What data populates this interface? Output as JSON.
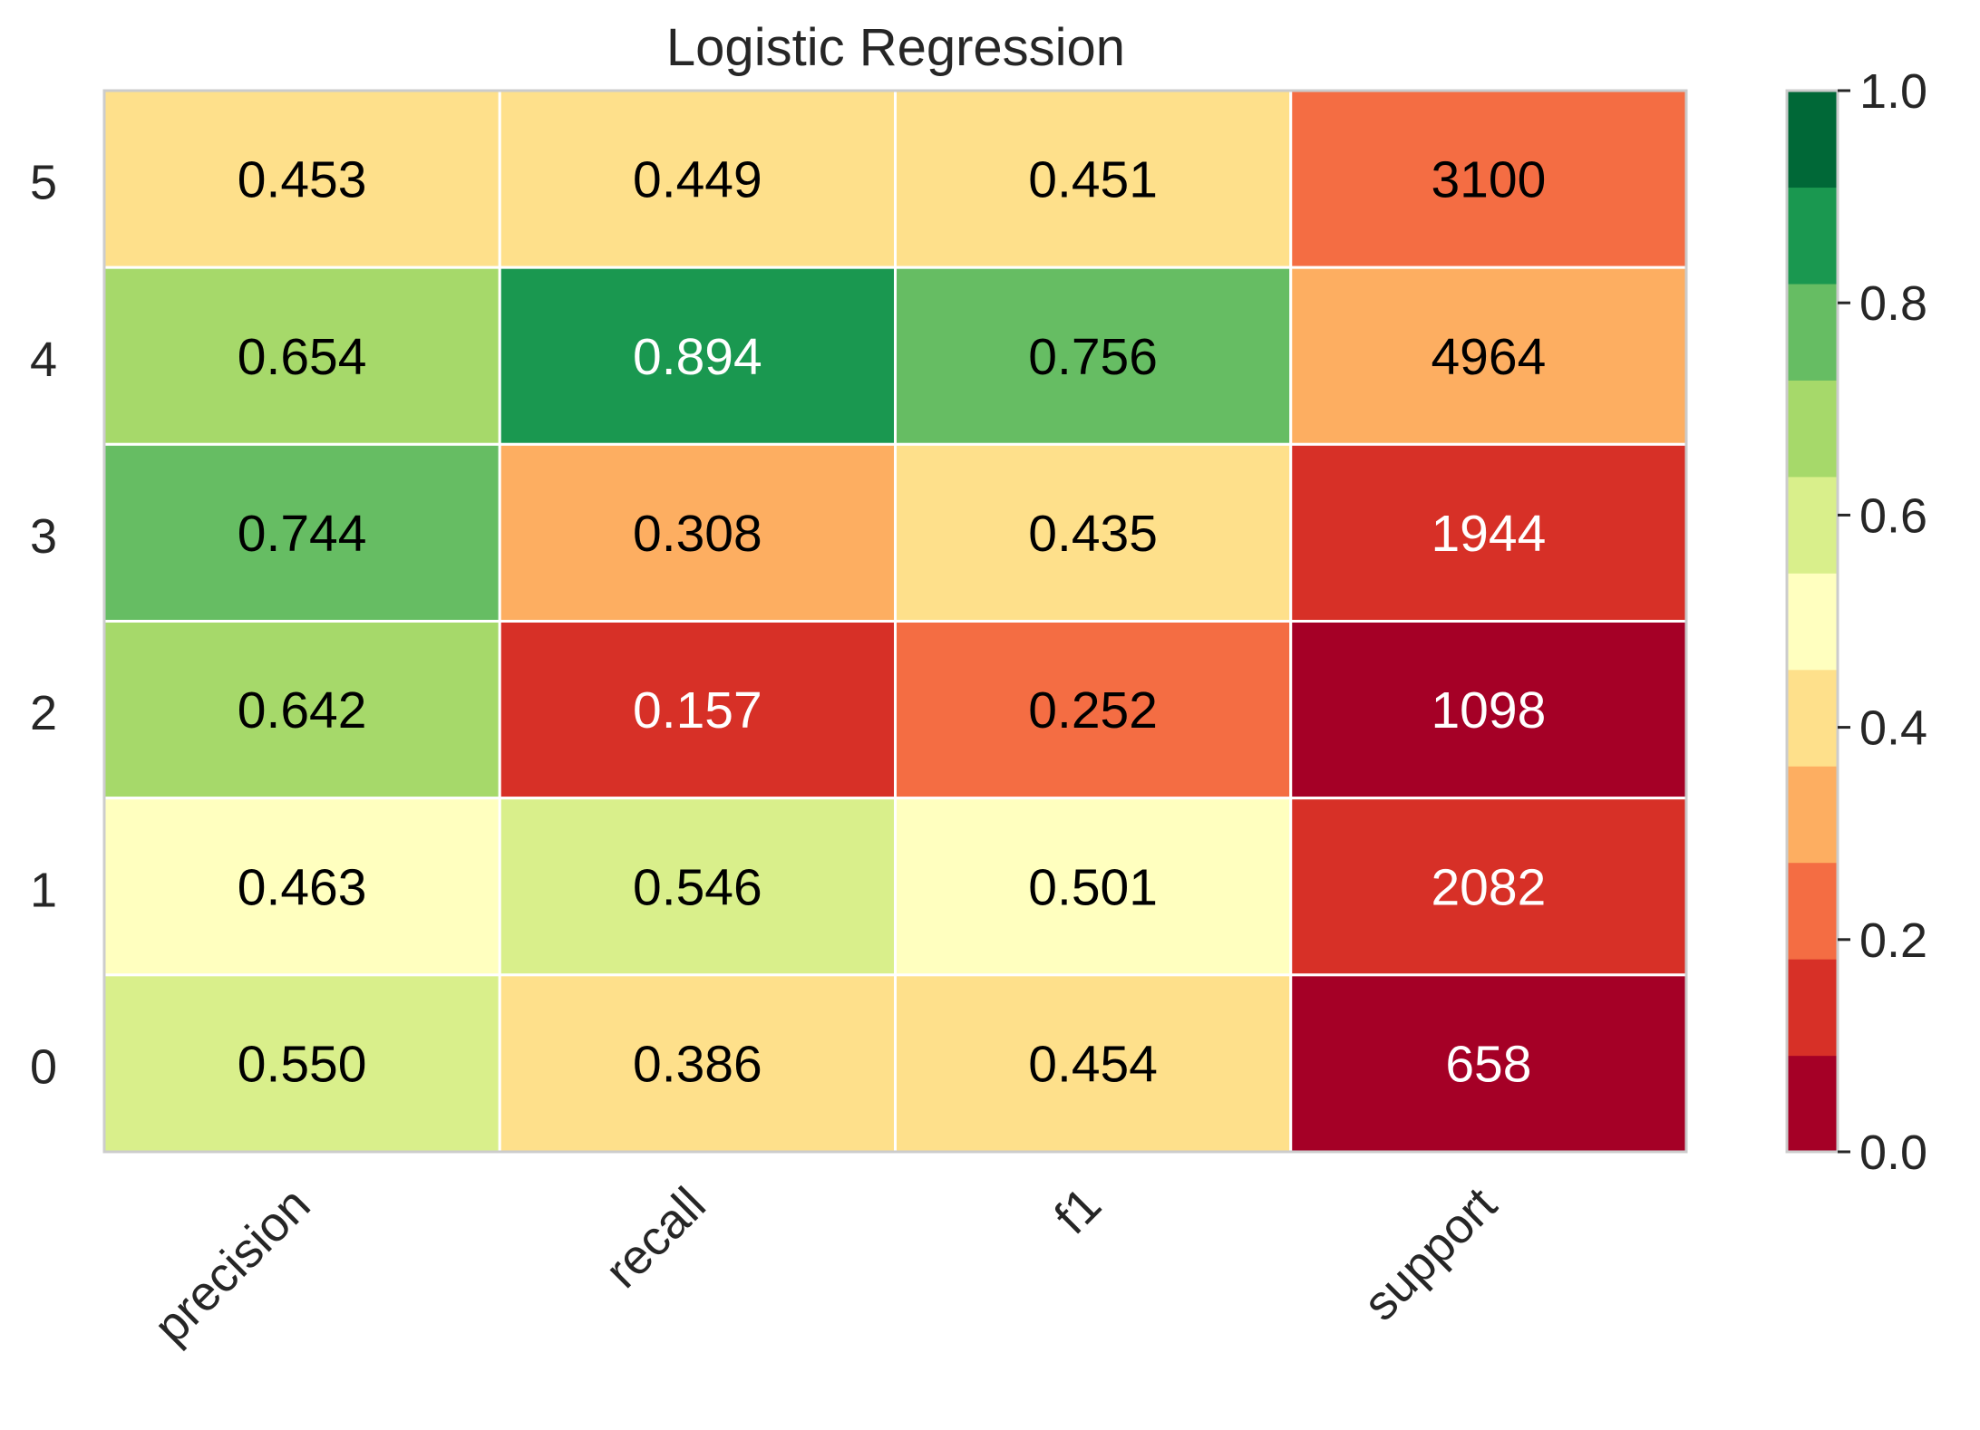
{
  "chart_data": {
    "type": "heatmap",
    "title": "Logistic Regression",
    "columns": [
      "precision",
      "recall",
      "f1",
      "support"
    ],
    "rows": [
      "5",
      "4",
      "3",
      "2",
      "1",
      "0"
    ],
    "values": [
      [
        0.453,
        0.449,
        0.451,
        3100
      ],
      [
        0.654,
        0.894,
        0.756,
        4964
      ],
      [
        0.744,
        0.308,
        0.435,
        1944
      ],
      [
        0.642,
        0.157,
        0.252,
        1098
      ],
      [
        0.463,
        0.546,
        0.501,
        2082
      ],
      [
        0.55,
        0.386,
        0.454,
        658
      ]
    ],
    "labels": [
      [
        "0.453",
        "0.449",
        "0.451",
        "3100"
      ],
      [
        "0.654",
        "0.894",
        "0.756",
        "4964"
      ],
      [
        "0.744",
        "0.308",
        "0.435",
        "1944"
      ],
      [
        "0.642",
        "0.157",
        "0.252",
        "1098"
      ],
      [
        "0.463",
        "0.546",
        "0.501",
        "2082"
      ],
      [
        "0.550",
        "0.386",
        "0.454",
        "658"
      ]
    ],
    "cell_colors": [
      [
        "#fee08b",
        "#fee08b",
        "#fee08b",
        "#f46d43"
      ],
      [
        "#a6d96a",
        "#1a9850",
        "#66bd63",
        "#fdae61"
      ],
      [
        "#66bd63",
        "#fdae61",
        "#fee08b",
        "#d73027"
      ],
      [
        "#a6d96a",
        "#d73027",
        "#f46d43",
        "#a50026"
      ],
      [
        "#ffffbf",
        "#d9ef8b",
        "#ffffbf",
        "#d73027"
      ],
      [
        "#d9ef8b",
        "#fee08b",
        "#fee08b",
        "#a50026"
      ]
    ],
    "text_colors": [
      [
        "#000000",
        "#000000",
        "#000000",
        "#000000"
      ],
      [
        "#000000",
        "#ffffff",
        "#000000",
        "#000000"
      ],
      [
        "#000000",
        "#000000",
        "#000000",
        "#ffffff"
      ],
      [
        "#000000",
        "#ffffff",
        "#000000",
        "#ffffff"
      ],
      [
        "#000000",
        "#000000",
        "#000000",
        "#ffffff"
      ],
      [
        "#000000",
        "#000000",
        "#000000",
        "#ffffff"
      ]
    ],
    "colorbar": {
      "range": [
        0.0,
        1.0
      ],
      "ticks": [
        0.0,
        0.2,
        0.4,
        0.6,
        0.8,
        1.0
      ],
      "tick_labels": [
        "0.0",
        "0.2",
        "0.4",
        "0.6",
        "0.8",
        "1.0"
      ],
      "colors": [
        "#a50026",
        "#d73027",
        "#f46d43",
        "#fdae61",
        "#fee08b",
        "#ffffbf",
        "#d9ef8b",
        "#a6d96a",
        "#66bd63",
        "#1a9850",
        "#006837"
      ]
    },
    "grid": false
  }
}
